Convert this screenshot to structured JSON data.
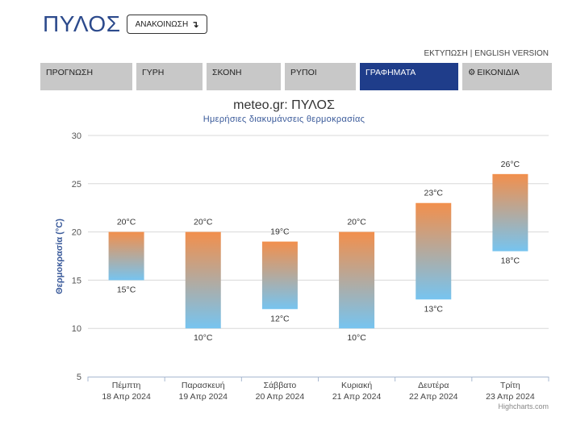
{
  "header": {
    "title": "ΠΥΛΟΣ",
    "announce_label": "ΑΝΑΚΟΙΝΩΣΗ",
    "announce_icon": "arrow-down-return-icon",
    "print_link": "ΕΚΤΥΠΩΣΗ",
    "link_separator": "|",
    "english_link": "ENGLISH VERSION"
  },
  "tabs": [
    {
      "label": "ΠΡΟΓΝΩΣΗ"
    },
    {
      "label": "ΓΥΡΗ"
    },
    {
      "label": "ΣΚΟΝΗ"
    },
    {
      "label": "ΡΥΠΟΙ"
    },
    {
      "label": "ΓΡΑΦΗΜΑΤΑ",
      "active": true
    },
    {
      "label": "ΕΙΚΟΝΙΔΙΑ",
      "icon": "gear-icon"
    }
  ],
  "colors": {
    "brand": "#2c4a8c",
    "active_tab": "#1f3d8a",
    "tab_bg": "#c8c8c8",
    "bar_top": "#f28f4c",
    "bar_bottom": "#76c4f0"
  },
  "chart_data": {
    "type": "bar",
    "title": "meteo.gr: ΠΥΛΟΣ",
    "subtitle": "Ημερήσιες διακυμάνσεις θερμοκρασίας",
    "ylabel": "Θερμοκρασία (°C)",
    "ylim": [
      5,
      30
    ],
    "yticks": [
      5,
      10,
      15,
      20,
      25,
      30
    ],
    "grid": true,
    "categories": [
      {
        "day": "Πέμπτη",
        "date": "18 Απρ 2024"
      },
      {
        "day": "Παρασκευή",
        "date": "19 Απρ 2024"
      },
      {
        "day": "Σάββατο",
        "date": "20 Απρ 2024"
      },
      {
        "day": "Κυριακή",
        "date": "21 Απρ 2024"
      },
      {
        "day": "Δευτέρα",
        "date": "22 Απρ 2024"
      },
      {
        "day": "Τρίτη",
        "date": "23 Απρ 2024"
      }
    ],
    "max": [
      20,
      20,
      19,
      20,
      23,
      26
    ],
    "min": [
      15,
      10,
      12,
      10,
      13,
      18
    ],
    "unit": "°C",
    "credits": "Highcharts.com"
  }
}
